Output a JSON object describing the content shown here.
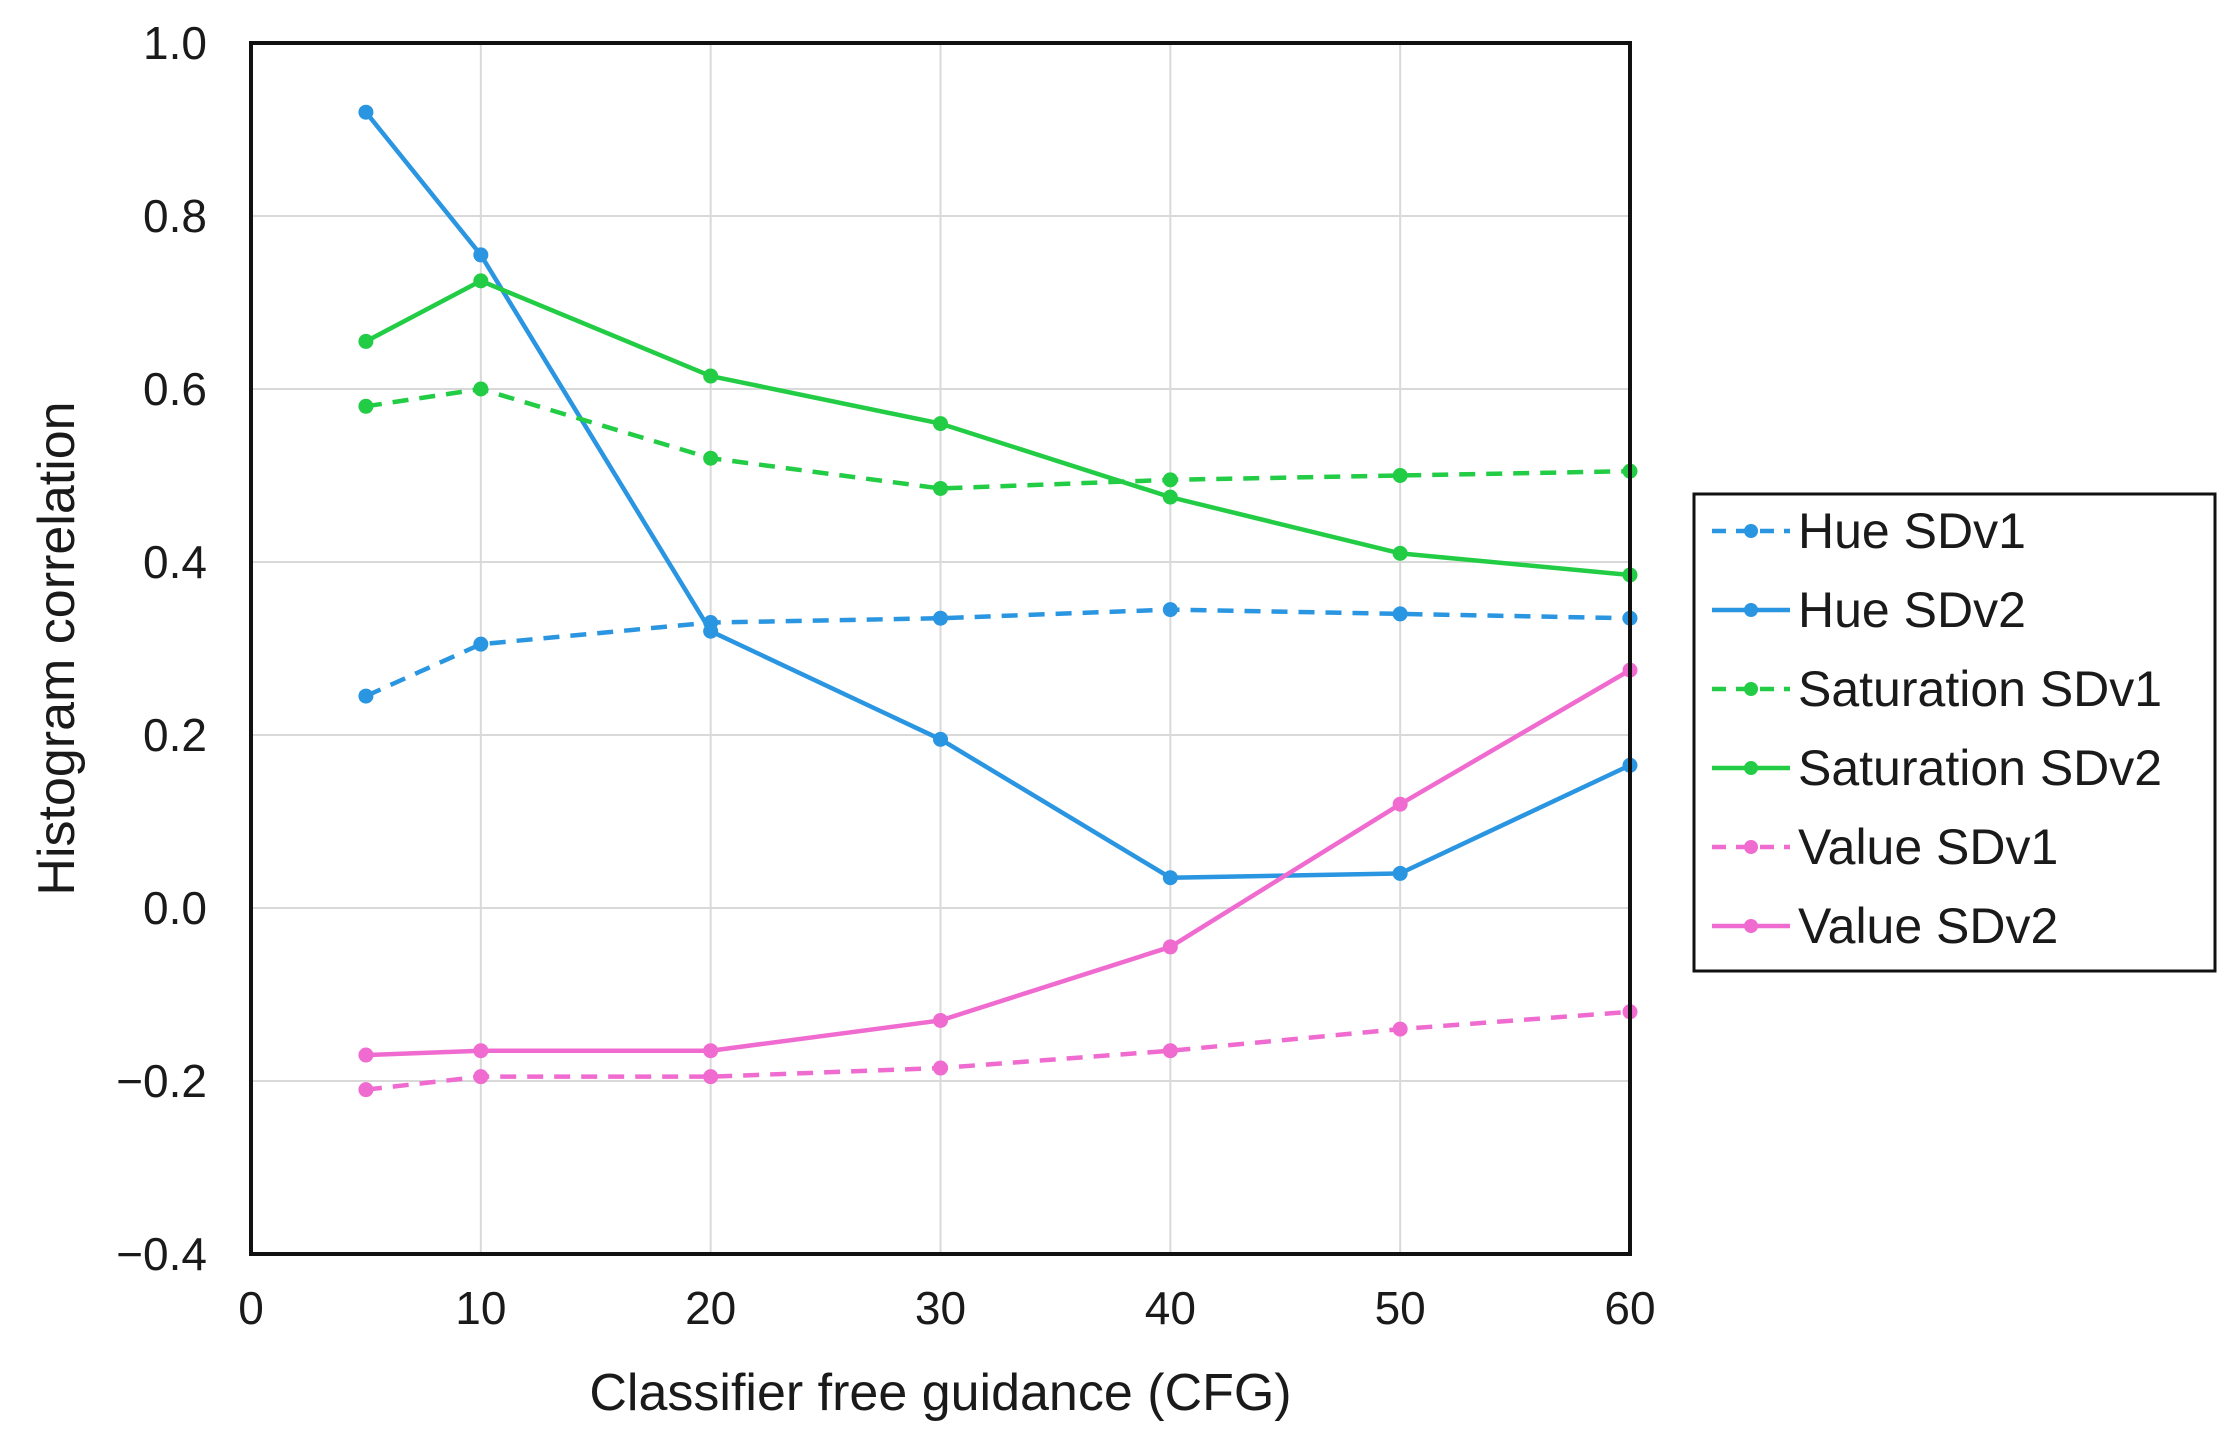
{
  "chart_data": {
    "type": "line",
    "title": "",
    "xlabel": "Classifier free guidance (CFG)",
    "ylabel": "Histogram correlation",
    "xlim": [
      0,
      60
    ],
    "ylim": [
      -0.4,
      1.0
    ],
    "xticks": [
      0,
      10,
      20,
      30,
      40,
      50,
      60
    ],
    "yticks": [
      -0.4,
      -0.2,
      0.0,
      0.2,
      0.4,
      0.6,
      0.8,
      1.0
    ],
    "ytick_labels": [
      "−0.4",
      "−0.2",
      "0.0",
      "0.2",
      "0.4",
      "0.6",
      "0.8",
      "1.0"
    ],
    "grid": true,
    "legend_position": "right",
    "x": [
      5,
      10,
      20,
      30,
      40,
      50,
      60
    ],
    "series": [
      {
        "name": "Hue SDv1",
        "color": "#2a95e0",
        "dashed": true,
        "values": [
          0.245,
          0.305,
          0.33,
          0.335,
          0.345,
          0.34,
          0.335
        ]
      },
      {
        "name": "Hue SDv2",
        "color": "#2a95e0",
        "dashed": false,
        "values": [
          0.92,
          0.755,
          0.32,
          0.195,
          0.035,
          0.04,
          0.165
        ]
      },
      {
        "name": "Saturation SDv1",
        "color": "#22cc44",
        "dashed": true,
        "values": [
          0.58,
          0.6,
          0.52,
          0.485,
          0.495,
          0.5,
          0.505
        ]
      },
      {
        "name": "Saturation SDv2",
        "color": "#22cc44",
        "dashed": false,
        "values": [
          0.655,
          0.725,
          0.615,
          0.56,
          0.475,
          0.41,
          0.385
        ]
      },
      {
        "name": "Value SDv1",
        "color": "#f06bd0",
        "dashed": true,
        "values": [
          -0.21,
          -0.195,
          -0.195,
          -0.185,
          -0.165,
          -0.14,
          -0.12
        ]
      },
      {
        "name": "Value SDv2",
        "color": "#f06bd0",
        "dashed": false,
        "values": [
          -0.17,
          -0.165,
          -0.165,
          -0.13,
          -0.045,
          0.12,
          0.275
        ]
      }
    ]
  }
}
